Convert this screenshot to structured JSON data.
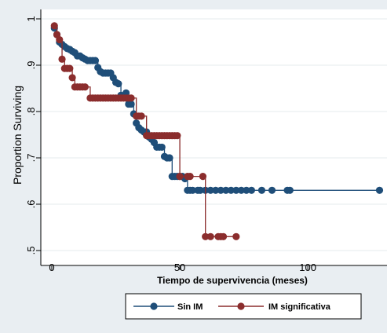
{
  "colors": {
    "background": "#e9eef2",
    "plot_background": "#ffffff",
    "sin_im": "#1f4e79",
    "im_significativa": "#8b2d2d"
  },
  "chart_data": {
    "type": "line",
    "step": true,
    "xlabel": "Tiempo de supervivencia (meses)",
    "ylabel": "Proportion Surviving",
    "xlim": [
      0,
      130
    ],
    "ylim": [
      0.5,
      1.0
    ],
    "x_ticks": [
      0,
      50,
      100
    ],
    "x_tick_labels": [
      "0",
      "50",
      "100"
    ],
    "y_ticks": [
      0.5,
      0.6,
      0.7,
      0.8,
      0.9,
      1.0
    ],
    "y_tick_labels": [
      ".5",
      ".6",
      ".7",
      ".8",
      ".9",
      "1"
    ],
    "legend_position": "bottom",
    "series": [
      {
        "name": "Sin IM",
        "color": "#1f4e79",
        "x": [
          1,
          2,
          3,
          4,
          5,
          6,
          7,
          8,
          9,
          10,
          11,
          12,
          13,
          14,
          15,
          16,
          17,
          18,
          19,
          20,
          21,
          22,
          23,
          24,
          25,
          26,
          27,
          28,
          29,
          30,
          31,
          32,
          33,
          34,
          35,
          36,
          37,
          38,
          39,
          40,
          41,
          42,
          43,
          44,
          45,
          46,
          47,
          48,
          49,
          50,
          51,
          52,
          53,
          54,
          55,
          57,
          58,
          60,
          62,
          64,
          66,
          68,
          70,
          72,
          74,
          76,
          78,
          82,
          86,
          92,
          93,
          128
        ],
        "y": [
          0.98,
          0.966,
          0.95,
          0.945,
          0.94,
          0.936,
          0.934,
          0.93,
          0.927,
          0.92,
          0.92,
          0.916,
          0.913,
          0.91,
          0.91,
          0.91,
          0.91,
          0.895,
          0.886,
          0.883,
          0.883,
          0.883,
          0.883,
          0.873,
          0.863,
          0.86,
          0.835,
          0.83,
          0.84,
          0.816,
          0.816,
          0.795,
          0.775,
          0.765,
          0.76,
          0.756,
          0.756,
          0.745,
          0.74,
          0.733,
          0.723,
          0.723,
          0.723,
          0.703,
          0.7,
          0.7,
          0.66,
          0.66,
          0.66,
          0.66,
          0.66,
          0.655,
          0.63,
          0.63,
          0.63,
          0.63,
          0.63,
          0.63,
          0.63,
          0.63,
          0.63,
          0.63,
          0.63,
          0.63,
          0.63,
          0.63,
          0.63,
          0.63,
          0.63,
          0.63,
          0.63,
          0.63
        ]
      },
      {
        "name": "IM significativa",
        "color": "#8b2d2d",
        "x": [
          1,
          2,
          3,
          4,
          5,
          6,
          7,
          8,
          9,
          10,
          11,
          12,
          13,
          15,
          16,
          17,
          18,
          19,
          20,
          21,
          22,
          23,
          24,
          25,
          26,
          27,
          28,
          29,
          30,
          31,
          33,
          34,
          35,
          37,
          38,
          39,
          40,
          41,
          42,
          43,
          44,
          45,
          46,
          47,
          48,
          49,
          50,
          53,
          54,
          59,
          60,
          62,
          65,
          66,
          67,
          72
        ],
        "y": [
          0.985,
          0.966,
          0.955,
          0.913,
          0.893,
          0.893,
          0.893,
          0.873,
          0.853,
          0.853,
          0.853,
          0.853,
          0.853,
          0.829,
          0.829,
          0.829,
          0.829,
          0.829,
          0.829,
          0.829,
          0.829,
          0.829,
          0.829,
          0.829,
          0.829,
          0.829,
          0.829,
          0.829,
          0.829,
          0.829,
          0.79,
          0.79,
          0.79,
          0.748,
          0.748,
          0.748,
          0.748,
          0.748,
          0.748,
          0.748,
          0.748,
          0.748,
          0.748,
          0.748,
          0.748,
          0.748,
          0.66,
          0.66,
          0.66,
          0.66,
          0.53,
          0.53,
          0.53,
          0.53,
          0.53,
          0.53
        ]
      }
    ]
  }
}
